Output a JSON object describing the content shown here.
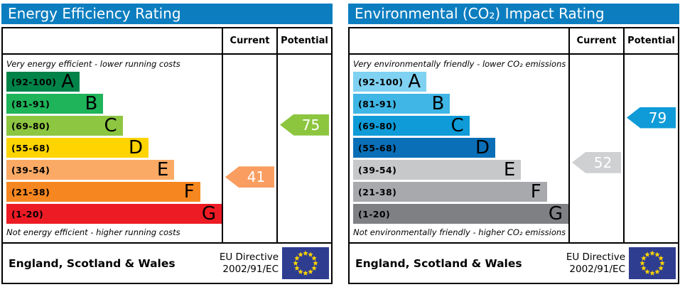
{
  "styles": {
    "header_bg": "#0c7ec0",
    "header_text": "#ffffff",
    "border": "#000000",
    "eu_flag_bg": "#2e3d8f",
    "eu_star": "#ffd500",
    "arrow_text": "#ffffff"
  },
  "chart_data": [
    {
      "type": "bar",
      "variant": "epc-rating",
      "title": "Energy Efficiency Rating",
      "top_note": "Very energy efficient - lower running costs",
      "bottom_note": "Not energy efficient - higher running costs",
      "legend_position": "none",
      "bands": [
        {
          "letter": "A",
          "label": "(92-100)",
          "min": 92,
          "max": 100,
          "color": "#008349",
          "width_pct": 34
        },
        {
          "letter": "B",
          "label": "(81-91)",
          "min": 81,
          "max": 91,
          "color": "#1fb35a",
          "width_pct": 45
        },
        {
          "letter": "C",
          "label": "(69-80)",
          "min": 69,
          "max": 80,
          "color": "#8dc641",
          "width_pct": 54
        },
        {
          "letter": "D",
          "label": "(55-68)",
          "min": 55,
          "max": 68,
          "color": "#ffd400",
          "width_pct": 66
        },
        {
          "letter": "E",
          "label": "(39-54)",
          "min": 39,
          "max": 54,
          "color": "#fbaa65",
          "width_pct": 78
        },
        {
          "letter": "F",
          "label": "(21-38)",
          "min": 21,
          "max": 38,
          "color": "#f6861f",
          "width_pct": 90
        },
        {
          "letter": "G",
          "label": "(1-20)",
          "min": 1,
          "max": 20,
          "color": "#ed1b24",
          "width_pct": 100
        }
      ],
      "current": {
        "label": "Current",
        "value": 41,
        "arrow_color": "#f99d61"
      },
      "potential": {
        "label": "Potential",
        "value": 75,
        "arrow_color": "#8cc63f"
      },
      "footer": {
        "region": "England, Scotland & Wales",
        "directive": [
          "EU Directive",
          "2002/91/EC"
        ]
      }
    },
    {
      "type": "bar",
      "variant": "epc-rating",
      "title": "Environmental (CO₂) Impact Rating",
      "top_note": "Very environmentally friendly - lower CO₂ emissions",
      "bottom_note": "Not environmentally friendly - higher CO₂ emissions",
      "legend_position": "none",
      "bands": [
        {
          "letter": "A",
          "label": "(92-100)",
          "min": 92,
          "max": 100,
          "color": "#7fd2f2",
          "width_pct": 34
        },
        {
          "letter": "B",
          "label": "(81-91)",
          "min": 81,
          "max": 91,
          "color": "#3fb6e5",
          "width_pct": 45
        },
        {
          "letter": "C",
          "label": "(69-80)",
          "min": 69,
          "max": 80,
          "color": "#0e9bd8",
          "width_pct": 54
        },
        {
          "letter": "D",
          "label": "(55-68)",
          "min": 55,
          "max": 68,
          "color": "#0b6fb7",
          "width_pct": 66
        },
        {
          "letter": "E",
          "label": "(39-54)",
          "min": 39,
          "max": 54,
          "color": "#c7c8ca",
          "width_pct": 78
        },
        {
          "letter": "F",
          "label": "(21-38)",
          "min": 21,
          "max": 38,
          "color": "#a7a9ac",
          "width_pct": 90
        },
        {
          "letter": "G",
          "label": "(1-20)",
          "min": 1,
          "max": 20,
          "color": "#7e8083",
          "width_pct": 100
        }
      ],
      "current": {
        "label": "Current",
        "value": 52,
        "arrow_color": "#cfd0d2"
      },
      "potential": {
        "label": "Potential",
        "value": 79,
        "arrow_color": "#0e9bd8"
      },
      "footer": {
        "region": "England, Scotland & Wales",
        "directive": [
          "EU Directive",
          "2002/91/EC"
        ]
      }
    }
  ]
}
